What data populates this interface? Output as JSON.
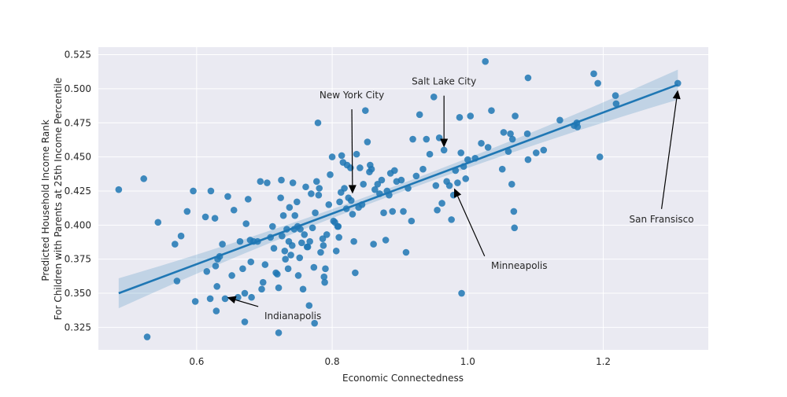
{
  "chart_data": {
    "type": "scatter",
    "title": "",
    "xlabel": "Economic Connectedness",
    "ylabel_lines": [
      "Predicted Household Income Rank",
      "For Children with Parents at 25th Income Percentile"
    ],
    "xlim": [
      0.455,
      1.355
    ],
    "ylim": [
      0.3085,
      0.5305
    ],
    "xticks": [
      0.6,
      0.8,
      1.0,
      1.2
    ],
    "xtick_labels": [
      "0.6",
      "0.8",
      "1.0",
      "1.2"
    ],
    "yticks": [
      0.325,
      0.35,
      0.375,
      0.4,
      0.425,
      0.45,
      0.475,
      0.5,
      0.525
    ],
    "ytick_labels": [
      "0.325",
      "0.350",
      "0.375",
      "0.400",
      "0.425",
      "0.450",
      "0.475",
      "0.500",
      "0.525"
    ],
    "grid": true,
    "style": {
      "background": "#eaeaf2",
      "grid_color": "#ffffff",
      "point_color": "#1f77b4",
      "fit_color": "#1f77b4"
    },
    "regression": {
      "x_start": 0.485,
      "y_start": 0.35,
      "x_end": 1.31,
      "y_end": 0.503,
      "ci_halfwidth_start": 0.011,
      "ci_halfwidth_mid": 0.003,
      "ci_halfwidth_end": 0.011,
      "x_mid": 0.88
    },
    "points": [
      [
        0.485,
        0.426
      ],
      [
        0.522,
        0.434
      ],
      [
        0.527,
        0.318
      ],
      [
        0.543,
        0.402
      ],
      [
        0.568,
        0.386
      ],
      [
        0.571,
        0.359
      ],
      [
        0.577,
        0.392
      ],
      [
        0.586,
        0.41
      ],
      [
        0.595,
        0.425
      ],
      [
        0.598,
        0.344
      ],
      [
        0.613,
        0.406
      ],
      [
        0.615,
        0.366
      ],
      [
        0.62,
        0.346
      ],
      [
        0.621,
        0.425
      ],
      [
        0.627,
        0.405
      ],
      [
        0.628,
        0.37
      ],
      [
        0.629,
        0.337
      ],
      [
        0.63,
        0.355
      ],
      [
        0.631,
        0.375
      ],
      [
        0.634,
        0.377
      ],
      [
        0.638,
        0.386
      ],
      [
        0.642,
        0.346
      ],
      [
        0.646,
        0.421
      ],
      [
        0.652,
        0.363
      ],
      [
        0.655,
        0.411
      ],
      [
        0.661,
        0.347
      ],
      [
        0.664,
        0.388
      ],
      [
        0.668,
        0.368
      ],
      [
        0.671,
        0.35
      ],
      [
        0.671,
        0.329
      ],
      [
        0.673,
        0.401
      ],
      [
        0.676,
        0.419
      ],
      [
        0.679,
        0.389
      ],
      [
        0.68,
        0.373
      ],
      [
        0.681,
        0.347
      ],
      [
        0.684,
        0.388
      ],
      [
        0.69,
        0.388
      ],
      [
        0.694,
        0.432
      ],
      [
        0.696,
        0.353
      ],
      [
        0.698,
        0.358
      ],
      [
        0.701,
        0.371
      ],
      [
        0.704,
        0.431
      ],
      [
        0.709,
        0.391
      ],
      [
        0.712,
        0.399
      ],
      [
        0.714,
        0.383
      ],
      [
        0.717,
        0.365
      ],
      [
        0.719,
        0.364
      ],
      [
        0.721,
        0.354
      ],
      [
        0.721,
        0.321
      ],
      [
        0.724,
        0.42
      ],
      [
        0.725,
        0.433
      ],
      [
        0.726,
        0.392
      ],
      [
        0.728,
        0.407
      ],
      [
        0.73,
        0.381
      ],
      [
        0.731,
        0.375
      ],
      [
        0.733,
        0.397
      ],
      [
        0.735,
        0.368
      ],
      [
        0.736,
        0.388
      ],
      [
        0.737,
        0.413
      ],
      [
        0.739,
        0.378
      ],
      [
        0.741,
        0.385
      ],
      [
        0.742,
        0.431
      ],
      [
        0.744,
        0.397
      ],
      [
        0.745,
        0.407
      ],
      [
        0.748,
        0.417
      ],
      [
        0.749,
        0.399
      ],
      [
        0.75,
        0.363
      ],
      [
        0.752,
        0.376
      ],
      [
        0.753,
        0.397
      ],
      [
        0.755,
        0.387
      ],
      [
        0.757,
        0.353
      ],
      [
        0.759,
        0.393
      ],
      [
        0.761,
        0.428
      ],
      [
        0.763,
        0.384
      ],
      [
        0.764,
        0.384
      ],
      [
        0.766,
        0.341
      ],
      [
        0.767,
        0.388
      ],
      [
        0.769,
        0.423
      ],
      [
        0.771,
        0.398
      ],
      [
        0.773,
        0.369
      ],
      [
        0.774,
        0.328
      ],
      [
        0.775,
        0.409
      ],
      [
        0.777,
        0.432
      ],
      [
        0.779,
        0.475
      ],
      [
        0.78,
        0.422
      ],
      [
        0.781,
        0.427
      ],
      [
        0.783,
        0.38
      ],
      [
        0.786,
        0.39
      ],
      [
        0.787,
        0.385
      ],
      [
        0.788,
        0.362
      ],
      [
        0.789,
        0.358
      ],
      [
        0.79,
        0.368
      ],
      [
        0.792,
        0.393
      ],
      [
        0.795,
        0.415
      ],
      [
        0.797,
        0.437
      ],
      [
        0.8,
        0.45
      ],
      [
        0.802,
        0.403
      ],
      [
        0.804,
        0.402
      ],
      [
        0.806,
        0.381
      ],
      [
        0.808,
        0.399
      ],
      [
        0.809,
        0.399
      ],
      [
        0.81,
        0.391
      ],
      [
        0.811,
        0.417
      ],
      [
        0.813,
        0.424
      ],
      [
        0.814,
        0.451
      ],
      [
        0.816,
        0.446
      ],
      [
        0.818,
        0.427
      ],
      [
        0.821,
        0.412
      ],
      [
        0.822,
        0.444
      ],
      [
        0.824,
        0.42
      ],
      [
        0.827,
        0.442
      ],
      [
        0.828,
        0.418
      ],
      [
        0.83,
        0.408
      ],
      [
        0.832,
        0.388
      ],
      [
        0.834,
        0.365
      ],
      [
        0.836,
        0.452
      ],
      [
        0.839,
        0.413
      ],
      [
        0.841,
        0.442
      ],
      [
        0.844,
        0.415
      ],
      [
        0.846,
        0.43
      ],
      [
        0.849,
        0.484
      ],
      [
        0.852,
        0.461
      ],
      [
        0.855,
        0.439
      ],
      [
        0.856,
        0.444
      ],
      [
        0.858,
        0.441
      ],
      [
        0.861,
        0.386
      ],
      [
        0.863,
        0.426
      ],
      [
        0.867,
        0.43
      ],
      [
        0.87,
        0.423
      ],
      [
        0.873,
        0.433
      ],
      [
        0.876,
        0.409
      ],
      [
        0.879,
        0.389
      ],
      [
        0.881,
        0.425
      ],
      [
        0.884,
        0.422
      ],
      [
        0.886,
        0.438
      ],
      [
        0.889,
        0.41
      ],
      [
        0.892,
        0.44
      ],
      [
        0.895,
        0.432
      ],
      [
        0.902,
        0.433
      ],
      [
        0.905,
        0.41
      ],
      [
        0.909,
        0.38
      ],
      [
        0.912,
        0.427
      ],
      [
        0.917,
        0.403
      ],
      [
        0.919,
        0.463
      ],
      [
        0.924,
        0.436
      ],
      [
        0.929,
        0.481
      ],
      [
        0.934,
        0.441
      ],
      [
        0.939,
        0.463
      ],
      [
        0.944,
        0.452
      ],
      [
        0.95,
        0.494
      ],
      [
        0.953,
        0.429
      ],
      [
        0.955,
        0.411
      ],
      [
        0.958,
        0.464
      ],
      [
        0.962,
        0.416
      ],
      [
        0.965,
        0.455
      ],
      [
        0.969,
        0.432
      ],
      [
        0.973,
        0.429
      ],
      [
        0.976,
        0.404
      ],
      [
        0.979,
        0.422
      ],
      [
        0.982,
        0.44
      ],
      [
        0.985,
        0.431
      ],
      [
        0.988,
        0.479
      ],
      [
        0.99,
        0.453
      ],
      [
        0.991,
        0.35
      ],
      [
        0.994,
        0.443
      ],
      [
        0.997,
        0.434
      ],
      [
        1.0,
        0.448
      ],
      [
        1.004,
        0.48
      ],
      [
        1.011,
        0.449
      ],
      [
        1.02,
        0.46
      ],
      [
        1.026,
        0.52
      ],
      [
        1.03,
        0.457
      ],
      [
        1.035,
        0.484
      ],
      [
        1.051,
        0.441
      ],
      [
        1.053,
        0.468
      ],
      [
        1.06,
        0.454
      ],
      [
        1.063,
        0.467
      ],
      [
        1.065,
        0.43
      ],
      [
        1.066,
        0.463
      ],
      [
        1.068,
        0.41
      ],
      [
        1.069,
        0.398
      ],
      [
        1.07,
        0.48
      ],
      [
        1.088,
        0.467
      ],
      [
        1.089,
        0.508
      ],
      [
        1.089,
        0.448
      ],
      [
        1.101,
        0.453
      ],
      [
        1.112,
        0.455
      ],
      [
        1.136,
        0.477
      ],
      [
        1.157,
        0.473
      ],
      [
        1.161,
        0.475
      ],
      [
        1.162,
        0.472
      ],
      [
        1.186,
        0.511
      ],
      [
        1.192,
        0.504
      ],
      [
        1.195,
        0.45
      ],
      [
        1.218,
        0.495
      ],
      [
        1.219,
        0.489
      ],
      [
        1.31,
        0.504
      ]
    ],
    "annotations": [
      {
        "text": "New York City",
        "x": 0.83,
        "y": 0.423,
        "text_x": 0.829,
        "text_y": 0.493
      },
      {
        "text": "Salt Lake City",
        "x": 0.965,
        "y": 0.457,
        "text_x": 0.965,
        "text_y": 0.503
      },
      {
        "text": "San Fransisco",
        "x": 1.31,
        "y": 0.499,
        "text_x": 1.286,
        "text_y": 0.402
      },
      {
        "text": "Minneapolis",
        "x": 0.98,
        "y": 0.427,
        "text_x": 1.076,
        "text_y": 0.368
      },
      {
        "text": "Indianapolis",
        "x": 0.645,
        "y": 0.347,
        "text_x": 0.742,
        "text_y": 0.331
      }
    ]
  }
}
